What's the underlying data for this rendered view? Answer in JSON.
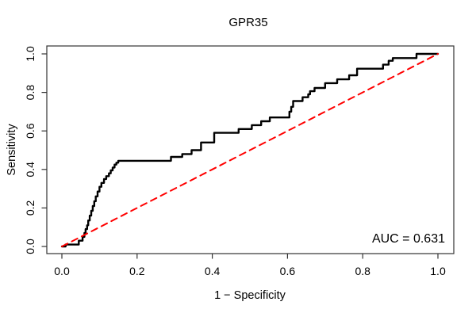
{
  "title": "GPR35",
  "annotation": {
    "auc_label": "AUC = 0.631"
  },
  "colors": {
    "curve": "#000000",
    "diagonal": "#ff0000",
    "axis": "#333333",
    "background": "#ffffff"
  },
  "chart_data": {
    "type": "line",
    "title": "GPR35",
    "xlabel": "1 − Specificity",
    "ylabel": "Sensitivity",
    "xlim": [
      0,
      1
    ],
    "ylim": [
      0,
      1
    ],
    "grid": false,
    "legend_position": "none",
    "auc": 0.631,
    "annotation": "AUC = 0.631",
    "x_tick_values": [
      0.0,
      0.2,
      0.4,
      0.6,
      0.8,
      1.0
    ],
    "x_tick_labels": [
      "0.0",
      "0.2",
      "0.4",
      "0.6",
      "0.8",
      "1.0"
    ],
    "y_tick_values": [
      0.0,
      0.2,
      0.4,
      0.6,
      0.8,
      1.0
    ],
    "y_tick_labels": [
      "0.0",
      "0.2",
      "0.4",
      "0.6",
      "0.8",
      "1.0"
    ],
    "series": [
      {
        "name": "ROC curve",
        "color": "#000000",
        "style": "solid",
        "width": 2.4,
        "points": [
          [
            0.0,
            0.0
          ],
          [
            0.01,
            0.0
          ],
          [
            0.01,
            0.01
          ],
          [
            0.045,
            0.01
          ],
          [
            0.045,
            0.03
          ],
          [
            0.055,
            0.03
          ],
          [
            0.055,
            0.05
          ],
          [
            0.06,
            0.05
          ],
          [
            0.06,
            0.07
          ],
          [
            0.063,
            0.07
          ],
          [
            0.063,
            0.09
          ],
          [
            0.067,
            0.09
          ],
          [
            0.067,
            0.11
          ],
          [
            0.07,
            0.11
          ],
          [
            0.07,
            0.135
          ],
          [
            0.074,
            0.135
          ],
          [
            0.074,
            0.16
          ],
          [
            0.078,
            0.16
          ],
          [
            0.078,
            0.185
          ],
          [
            0.082,
            0.185
          ],
          [
            0.082,
            0.21
          ],
          [
            0.086,
            0.21
          ],
          [
            0.086,
            0.235
          ],
          [
            0.09,
            0.235
          ],
          [
            0.09,
            0.26
          ],
          [
            0.095,
            0.26
          ],
          [
            0.095,
            0.285
          ],
          [
            0.1,
            0.285
          ],
          [
            0.1,
            0.31
          ],
          [
            0.105,
            0.31
          ],
          [
            0.105,
            0.33
          ],
          [
            0.112,
            0.33
          ],
          [
            0.112,
            0.35
          ],
          [
            0.118,
            0.35
          ],
          [
            0.118,
            0.365
          ],
          [
            0.125,
            0.365
          ],
          [
            0.125,
            0.38
          ],
          [
            0.13,
            0.38
          ],
          [
            0.13,
            0.395
          ],
          [
            0.135,
            0.395
          ],
          [
            0.135,
            0.41
          ],
          [
            0.14,
            0.41
          ],
          [
            0.14,
            0.425
          ],
          [
            0.145,
            0.425
          ],
          [
            0.145,
            0.435
          ],
          [
            0.15,
            0.435
          ],
          [
            0.15,
            0.445
          ],
          [
            0.29,
            0.445
          ],
          [
            0.29,
            0.465
          ],
          [
            0.32,
            0.465
          ],
          [
            0.32,
            0.48
          ],
          [
            0.345,
            0.48
          ],
          [
            0.345,
            0.5
          ],
          [
            0.37,
            0.5
          ],
          [
            0.37,
            0.54
          ],
          [
            0.405,
            0.54
          ],
          [
            0.405,
            0.59
          ],
          [
            0.47,
            0.59
          ],
          [
            0.47,
            0.61
          ],
          [
            0.505,
            0.61
          ],
          [
            0.505,
            0.63
          ],
          [
            0.53,
            0.63
          ],
          [
            0.53,
            0.65
          ],
          [
            0.553,
            0.65
          ],
          [
            0.553,
            0.67
          ],
          [
            0.605,
            0.67
          ],
          [
            0.605,
            0.7
          ],
          [
            0.61,
            0.7
          ],
          [
            0.61,
            0.725
          ],
          [
            0.615,
            0.725
          ],
          [
            0.615,
            0.755
          ],
          [
            0.64,
            0.755
          ],
          [
            0.64,
            0.775
          ],
          [
            0.655,
            0.775
          ],
          [
            0.655,
            0.79
          ],
          [
            0.66,
            0.79
          ],
          [
            0.66,
            0.806
          ],
          [
            0.672,
            0.806
          ],
          [
            0.672,
            0.823
          ],
          [
            0.7,
            0.823
          ],
          [
            0.7,
            0.848
          ],
          [
            0.732,
            0.848
          ],
          [
            0.732,
            0.868
          ],
          [
            0.764,
            0.868
          ],
          [
            0.764,
            0.889
          ],
          [
            0.785,
            0.889
          ],
          [
            0.785,
            0.923
          ],
          [
            0.854,
            0.923
          ],
          [
            0.854,
            0.944
          ],
          [
            0.869,
            0.944
          ],
          [
            0.869,
            0.964
          ],
          [
            0.88,
            0.964
          ],
          [
            0.88,
            0.978
          ],
          [
            0.943,
            0.978
          ],
          [
            0.943,
            1.0
          ],
          [
            1.0,
            1.0
          ]
        ]
      },
      {
        "name": "Reference diagonal",
        "color": "#ff0000",
        "style": "dashed",
        "width": 2,
        "points": [
          [
            0.0,
            0.0
          ],
          [
            1.0,
            1.0
          ]
        ]
      }
    ]
  }
}
